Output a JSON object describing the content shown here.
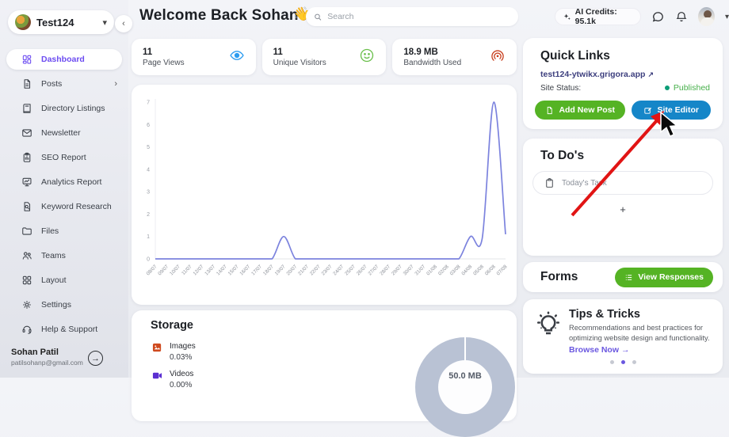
{
  "brand": {
    "name": "Test124"
  },
  "sidebar": {
    "collapse_glyph": "‹",
    "items": [
      {
        "label": "Dashboard",
        "icon": "dashboard",
        "active": true
      },
      {
        "label": "Posts",
        "icon": "posts",
        "chevron": "›"
      },
      {
        "label": "Directory Listings",
        "icon": "directory"
      },
      {
        "label": "Newsletter",
        "icon": "newsletter"
      },
      {
        "label": "SEO Report",
        "icon": "seo"
      },
      {
        "label": "Analytics Report",
        "icon": "analytics"
      },
      {
        "label": "Keyword Research",
        "icon": "keyword"
      },
      {
        "label": "Files",
        "icon": "files"
      },
      {
        "label": "Teams",
        "icon": "teams"
      },
      {
        "label": "Layout",
        "icon": "layout"
      },
      {
        "label": "Settings",
        "icon": "settings"
      },
      {
        "label": "Help & Support",
        "icon": "help"
      }
    ],
    "user": {
      "name": "Sohan Patil",
      "email": "patilsohanp@gmail.com"
    }
  },
  "header": {
    "title": "Welcome Back Sohan",
    "wave_emoji": "👋",
    "search_placeholder": "Search",
    "ai_credits": "AI Credits: 95.1k"
  },
  "stats": [
    {
      "value": "11",
      "label": "Page Views",
      "icon": "eye",
      "color": "#2d9cf0"
    },
    {
      "value": "11",
      "label": "Unique Visitors",
      "icon": "smiley",
      "color": "#6abf4b"
    },
    {
      "value": "18.9 MB",
      "label": "Bandwidth Used",
      "icon": "broadcast",
      "color": "#c8401f"
    }
  ],
  "chart_data": {
    "type": "line",
    "title": "",
    "categories": [
      "08/07",
      "09/07",
      "10/07",
      "11/07",
      "12/07",
      "13/07",
      "14/07",
      "15/07",
      "16/07",
      "17/07",
      "18/07",
      "19/07",
      "20/07",
      "21/07",
      "22/07",
      "23/07",
      "24/07",
      "25/07",
      "26/07",
      "27/07",
      "28/07",
      "29/07",
      "30/07",
      "31/07",
      "01/08",
      "02/08",
      "03/08",
      "04/08",
      "05/08",
      "06/08",
      "07/08"
    ],
    "values": [
      0,
      0,
      0,
      0,
      0,
      0,
      0,
      0,
      0,
      0,
      0,
      1,
      0,
      0,
      0,
      0,
      0,
      0,
      0,
      0,
      0,
      0,
      0,
      0,
      0,
      0,
      0,
      1,
      0.9,
      7,
      1.1
    ],
    "xlabel": "",
    "ylabel": "",
    "ylim": [
      0,
      7
    ],
    "yticks": [
      0,
      1,
      2,
      3,
      4,
      5,
      6,
      7
    ],
    "grid": false,
    "legend_position": "none",
    "line_color": "#7c83de"
  },
  "storage": {
    "title": "Storage",
    "legend": [
      {
        "label": "Images",
        "value": "0.03%",
        "icon": "image",
        "color": "#cf4a1f"
      },
      {
        "label": "Videos",
        "value": "0.00%",
        "icon": "video",
        "color": "#5b2fd1"
      }
    ],
    "total": "50.0 MB"
  },
  "quick_links": {
    "title": "Quick Links",
    "site_url": "test124-ytwikx.grigora.app",
    "external_glyph": "↗",
    "site_status_label": "Site Status:",
    "site_status": "Published",
    "add_new_post": "Add New Post",
    "site_editor": "Site Editor"
  },
  "todos": {
    "title": "To Do's",
    "task_placeholder": "Today's Task",
    "add_glyph": "+"
  },
  "forms": {
    "title": "Forms",
    "view_responses": "View Responses"
  },
  "tips": {
    "title": "Tips & Tricks",
    "description": "Recommendations and best practices for optimizing website design and functionality.",
    "link": "Browse Now",
    "link_arrow": "→",
    "dots": 3,
    "active_dot": 1
  },
  "colors": {
    "accent_purple": "#6c4cf1",
    "button_green": "#55b324",
    "button_blue": "#1586c8",
    "published_green": "#47b04b",
    "chart_line": "#7c83de",
    "annotation_red": "#e11414"
  }
}
